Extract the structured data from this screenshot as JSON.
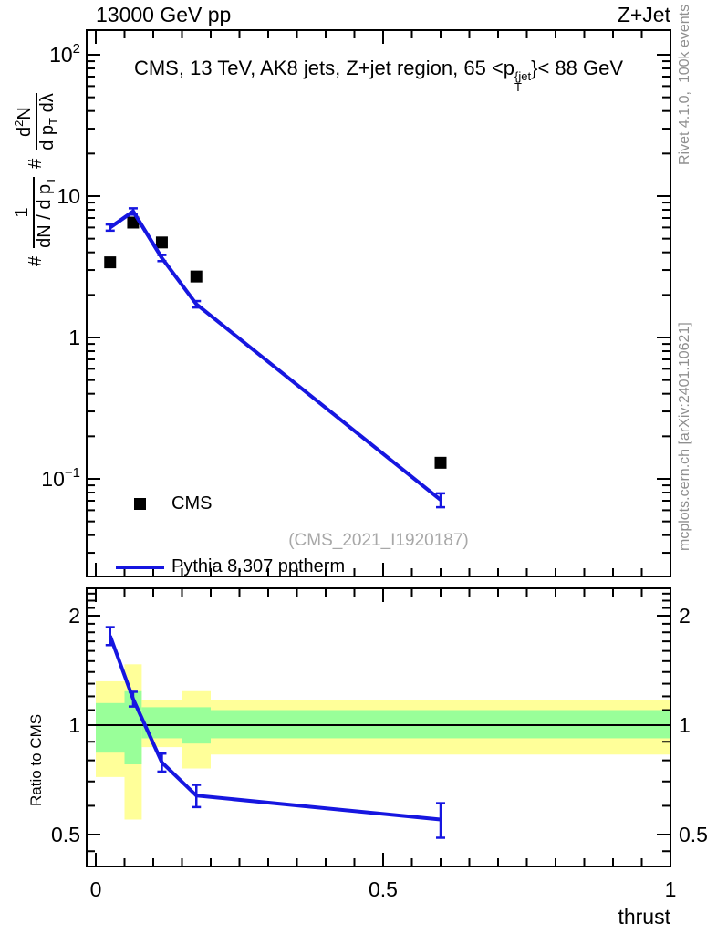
{
  "header": {
    "left": "13000 GeV pp",
    "right": "Z+Jet"
  },
  "side_notes": {
    "top_rotated": "Rivet 4.1.0,  100k events",
    "bottom_rotated": "mcplots.cern.ch [arXiv:2401.10621]"
  },
  "watermark": "(CMS_2021_I1920187)",
  "main_panel": {
    "title": {
      "pre": "CMS, 13 TeV, AK8 jets, Z+jet region, 65 <p",
      "sup": "{jet",
      "sub": "T",
      "post": "}< 88 GeV"
    },
    "ylabel": {
      "hash1": "#",
      "frac1_num": "1",
      "frac1_den_main": "dN / d p",
      "frac1_den_sub": "T",
      "hash2": "#",
      "frac2_num_a": "d",
      "frac2_num_sup": "2",
      "frac2_num_b": "N",
      "frac2_den_main": "d p",
      "frac2_den_sub": "T",
      "frac2_den_tail": " dλ"
    },
    "legend": {
      "items": [
        {
          "label": "CMS"
        },
        {
          "label": "Pythia 8.307 pptherm"
        }
      ]
    }
  },
  "ratio_panel": {
    "ylabel": "Ratio to CMS"
  },
  "xaxis": {
    "label": "thrust"
  },
  "colors": {
    "pythia_blue": "#1616e0",
    "band_yellow": "#ffff99",
    "band_green": "#99ff99",
    "gray_text": "#8f8f8f",
    "watermark": "#a8a8a8"
  },
  "chart_data": {
    "type": "line",
    "title": "CMS, 13 TeV, AK8 jets, Z+jet region, 65 <p_T^{jet}< 88 GeV",
    "xlabel": "thrust",
    "ylabel": "# 1/(dN/dp_T) # d2N/(dp_T dλ)",
    "xlim": [
      0,
      1
    ],
    "ylog": true,
    "ylim": [
      0.021,
      145
    ],
    "xticks": [
      0,
      0.5,
      1
    ],
    "xtick_labels": [
      "0",
      "0.5",
      "1"
    ],
    "xtick_minor_step": 0.05,
    "ytick_exponents": [
      2,
      1,
      0,
      -1
    ],
    "legend_position": "left-middle",
    "grid": false,
    "x": [
      0.025,
      0.065,
      0.115,
      0.175,
      0.6
    ],
    "series": [
      {
        "name": "CMS",
        "type": "scatter",
        "marker": "filled-square",
        "color": "#000000",
        "y": [
          3.4,
          6.5,
          4.7,
          2.7,
          0.13
        ]
      },
      {
        "name": "Pythia 8.307 pptherm",
        "type": "line",
        "color": "#1616e0",
        "y": [
          6.0,
          7.8,
          3.65,
          1.72,
          0.071
        ],
        "yerr": [
          0.3,
          0.4,
          0.18,
          0.09,
          0.008
        ]
      }
    ],
    "ratio": {
      "ylabel": "Ratio to CMS",
      "ylog": true,
      "ylim": [
        0.41,
        2.38
      ],
      "yticks": [
        2,
        1,
        0.5
      ],
      "ytick_labels": [
        "2",
        "1",
        "0.5"
      ],
      "yticks_minor": [
        0.45,
        0.6,
        0.7,
        0.8,
        0.9,
        1.1,
        1.2,
        1.3,
        1.4,
        1.5,
        1.6,
        1.7,
        1.8,
        1.9,
        2.1,
        2.2,
        2.3
      ],
      "reference": 1,
      "x": [
        0.025,
        0.065,
        0.115,
        0.175,
        0.6
      ],
      "values": [
        1.76,
        1.18,
        0.79,
        0.64,
        0.55
      ],
      "errors": [
        0.1,
        0.055,
        0.045,
        0.045,
        0.06
      ],
      "bands": {
        "bin_edges": [
          0,
          0.05,
          0.08,
          0.15,
          0.2,
          1.0
        ],
        "yellow": [
          [
            0.72,
            1.32
          ],
          [
            0.55,
            1.47
          ],
          [
            0.87,
            1.17
          ],
          [
            0.76,
            1.24
          ],
          [
            0.83,
            1.17
          ]
        ],
        "green": [
          [
            0.84,
            1.15
          ],
          [
            0.78,
            1.24
          ],
          [
            0.92,
            1.12
          ],
          [
            0.89,
            1.12
          ],
          [
            0.92,
            1.1
          ]
        ]
      }
    }
  }
}
